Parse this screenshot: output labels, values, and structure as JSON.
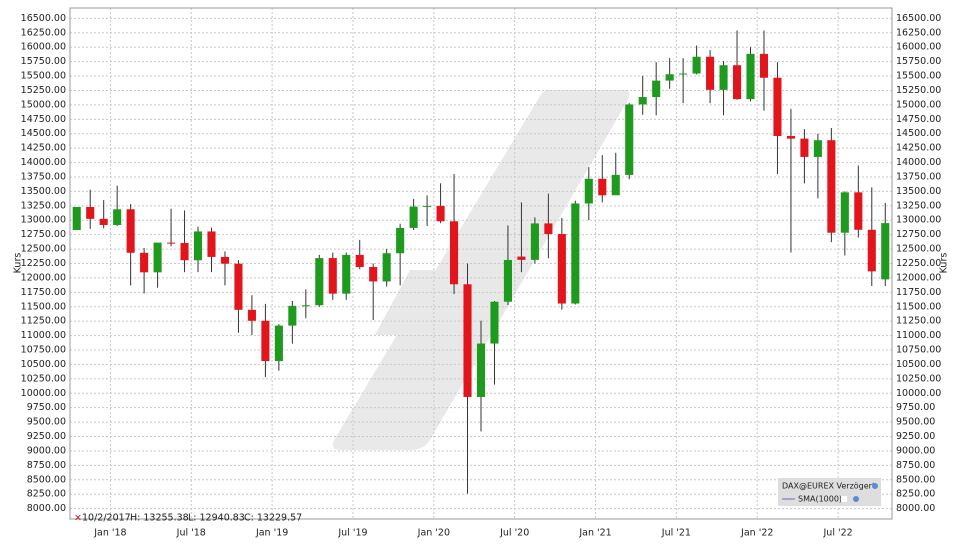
{
  "chart_data": {
    "type": "candlestick",
    "y_label": "Kurs",
    "ylim": [
      7820,
      16680
    ],
    "yticks": [
      {
        "value": 8000,
        "label": "8000.00"
      },
      {
        "value": 8250,
        "label": "8250.00"
      },
      {
        "value": 8500,
        "label": "8500.00"
      },
      {
        "value": 8750,
        "label": "8750.00"
      },
      {
        "value": 9000,
        "label": "9000.00"
      },
      {
        "value": 9250,
        "label": "9250.00"
      },
      {
        "value": 9500,
        "label": "9500.00"
      },
      {
        "value": 9750,
        "label": "9750.00"
      },
      {
        "value": 10000,
        "label": "10000.00"
      },
      {
        "value": 10250,
        "label": "10250.00"
      },
      {
        "value": 10500,
        "label": "10500.00"
      },
      {
        "value": 10750,
        "label": "10750.00"
      },
      {
        "value": 11000,
        "label": "11000.00"
      },
      {
        "value": 11250,
        "label": "11250.00"
      },
      {
        "value": 11500,
        "label": "11500.00"
      },
      {
        "value": 11750,
        "label": "11750.00"
      },
      {
        "value": 12000,
        "label": "12000.00"
      },
      {
        "value": 12250,
        "label": "12250.00"
      },
      {
        "value": 12500,
        "label": "12500.00"
      },
      {
        "value": 12750,
        "label": "12750.00"
      },
      {
        "value": 13000,
        "label": "13000.00"
      },
      {
        "value": 13250,
        "label": "13250.00"
      },
      {
        "value": 13500,
        "label": "13500.00"
      },
      {
        "value": 13750,
        "label": "13750.00"
      },
      {
        "value": 14000,
        "label": "14000.00"
      },
      {
        "value": 14250,
        "label": "14250.00"
      },
      {
        "value": 14500,
        "label": "14500.00"
      },
      {
        "value": 14750,
        "label": "14750.00"
      },
      {
        "value": 15000,
        "label": "15000.00"
      },
      {
        "value": 15250,
        "label": "15250.00"
      },
      {
        "value": 15500,
        "label": "15500.00"
      },
      {
        "value": 15750,
        "label": "15750.00"
      },
      {
        "value": 16000,
        "label": "16000.00"
      },
      {
        "value": 16250,
        "label": "16250.00"
      },
      {
        "value": 16500,
        "label": "16500.00"
      }
    ],
    "grid": true,
    "categories": [
      null,
      null,
      null,
      "Jan '18",
      null,
      null,
      null,
      null,
      null,
      "Jul '18",
      null,
      null,
      null,
      null,
      null,
      "Jan '19",
      null,
      null,
      null,
      null,
      null,
      "Jul '19",
      null,
      null,
      null,
      null,
      null,
      "Jan '20",
      null,
      null,
      null,
      null,
      null,
      "Jul '20",
      null,
      null,
      null,
      null,
      null,
      "Jan '21",
      null,
      null,
      null,
      null,
      null,
      "Jul '21",
      null,
      null,
      null,
      null,
      null,
      "Jan '22",
      null,
      null,
      null,
      null,
      null,
      "Jul '22",
      null,
      null,
      null
    ],
    "up_color": "#1e9a1e",
    "down_color": "#e3151c",
    "series": [
      {
        "name": "DAX@EUREX Verzögert",
        "open": [
          12830,
          13230,
          13024,
          12918,
          13190,
          12436,
          12097,
          12612,
          12605,
          12306,
          12806,
          12364,
          12247,
          11447,
          11257,
          10559,
          11173,
          11516,
          11526,
          12344,
          11727,
          12399,
          12189,
          11939,
          12428,
          12867,
          13236,
          13249,
          12982,
          11890,
          9936,
          10862,
          11587,
          12370,
          12313,
          12945,
          12761,
          11556,
          13291,
          13719,
          13433,
          13786,
          15008,
          15136,
          15421,
          15531,
          15544,
          15835,
          15261,
          15688,
          15100,
          15885,
          15471,
          14461,
          14415,
          14098,
          14388,
          12784,
          13484,
          12835,
          11975
        ],
        "high": [
          13230,
          13530,
          13350,
          13600,
          13280,
          12520,
          12600,
          13200,
          13170,
          12890,
          12870,
          12460,
          12310,
          11700,
          11550,
          11200,
          11600,
          11800,
          12400,
          12440,
          12440,
          12660,
          12250,
          12500,
          12940,
          13370,
          13430,
          13640,
          13800,
          12250,
          11260,
          11600,
          12910,
          13310,
          13050,
          13460,
          13040,
          13340,
          13920,
          14130,
          14170,
          15030,
          15500,
          15740,
          15810,
          15810,
          16030,
          15950,
          15760,
          16290,
          16000,
          16290,
          15740,
          14930,
          14580,
          14500,
          14600,
          13500,
          13950,
          13570,
          13300
        ],
        "low": [
          12830,
          12850,
          12860,
          12900,
          11870,
          11730,
          11830,
          12550,
          12100,
          12100,
          12100,
          11870,
          11050,
          11010,
          10280,
          10390,
          10860,
          11300,
          11500,
          11620,
          11620,
          12150,
          11270,
          11850,
          11870,
          12830,
          12900,
          12950,
          11720,
          8260,
          9340,
          10150,
          11530,
          12100,
          12250,
          12340,
          11450,
          11540,
          13000,
          13310,
          13470,
          13710,
          14830,
          14820,
          15280,
          15030,
          15530,
          15030,
          14820,
          15090,
          15060,
          14900,
          13800,
          12440,
          13640,
          13380,
          12620,
          12390,
          12700,
          11860,
          11860
        ],
        "close": [
          13230,
          13024,
          12918,
          13190,
          12436,
          12097,
          12612,
          12605,
          12306,
          12806,
          12364,
          12247,
          11447,
          11257,
          10559,
          11173,
          11516,
          11526,
          12344,
          11727,
          12399,
          12189,
          11939,
          12428,
          12867,
          13236,
          13249,
          12982,
          11890,
          9936,
          10862,
          11587,
          12311,
          12313,
          12945,
          12761,
          11556,
          13291,
          13719,
          13433,
          13786,
          15008,
          15136,
          15421,
          15531,
          15544,
          15835,
          15261,
          15688,
          15100,
          15885,
          15471,
          14461,
          14415,
          14098,
          14388,
          12784,
          13484,
          12835,
          12114,
          12950
        ]
      }
    ],
    "indicator": "SMA(1000)",
    "readout": [
      "10/2/2017",
      "H: 13255.38",
      "L: 12940.83",
      "C: 13229.57"
    ]
  }
}
